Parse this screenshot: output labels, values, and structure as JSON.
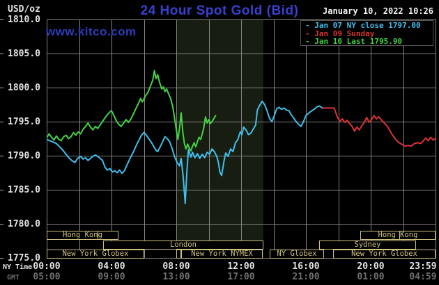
{
  "header": {
    "title": "24 Hour Spot Gold (Bid)",
    "datetime": "January 10, 2022 10:26",
    "watermark": "www.kitco.com",
    "unit_label": "USD/oz"
  },
  "colors": {
    "background": "#000000",
    "grid": "#848484",
    "band": "#171d11",
    "axis_text": "#e4e4e4",
    "gmt_text": "#6e6e6e",
    "session": "#cfc182",
    "title_blue": "#3840cf",
    "watermark_blue": "#2d3db8",
    "date_text": "#f2f2f2",
    "legend_border": "#555555",
    "edge_tick": "#b0b0b0"
  },
  "axes": {
    "y_ticks": [
      "1810.0",
      "1805.0",
      "1800.0",
      "1795.0",
      "1790.0",
      "1785.0",
      "1780.0",
      "1775.0"
    ],
    "x_rows": [
      {
        "label": "NY Time",
        "ticks": [
          "00:00",
          "04:00",
          "08:00",
          "12:00",
          "16:00",
          "20:00",
          "23:59"
        ]
      },
      {
        "label": "GMT",
        "ticks": [
          "05:00",
          "09:00",
          "13:00",
          "17:00",
          "21:00",
          "01:00",
          "04:59"
        ]
      }
    ]
  },
  "sessions": {
    "rows": [
      {
        "boxes": [
          {
            "from": 0,
            "to": 4.43,
            "label": "Hong Kong"
          },
          {
            "from": 19.35,
            "to": 24,
            "label": "Hong Kong"
          }
        ],
        "dividers": [
          3.14,
          21.76
        ]
      },
      {
        "boxes": [
          {
            "from": 3.48,
            "to": 13.38,
            "label": "London"
          },
          {
            "from": 16.82,
            "to": 22.8,
            "label": "Sydney"
          }
        ],
        "dividers": []
      },
      {
        "boxes": [
          {
            "from": 0,
            "to": 6.02,
            "label": "New York Globex"
          },
          {
            "from": 8.0,
            "to": 8.3,
            "label": ""
          },
          {
            "from": 8.3,
            "to": 13.33,
            "label": "New York NYMEX"
          },
          {
            "from": 13.76,
            "to": 17.12,
            "label": "NY Globex"
          },
          {
            "from": 17.68,
            "to": 24,
            "label": "New York Globex"
          }
        ],
        "dividers": []
      }
    ]
  },
  "chart_data": {
    "type": "line",
    "title": "24 Hour Spot Gold (Bid)",
    "ylabel": "USD/oz",
    "x_range_hours": [
      0,
      24
    ],
    "y_range": [
      1775,
      1810
    ],
    "x_grid_step_hours": 2,
    "y_grid_step": 5,
    "y_tick_values": [
      1810,
      1805,
      1800,
      1795,
      1790,
      1785,
      1780,
      1775
    ],
    "x_tick_hours": [
      0,
      4,
      8,
      12,
      16,
      20,
      24
    ],
    "highlight_band_hours": [
      8.0,
      13.37
    ],
    "legend_position": "top-right",
    "series": [
      {
        "name": "Jan 07 NY close 1797.00",
        "color": "#40bfee",
        "points": [
          [
            0,
            1792.4
          ],
          [
            0.2,
            1792.2
          ],
          [
            0.4,
            1792.0
          ],
          [
            0.6,
            1791.8
          ],
          [
            0.8,
            1791.3
          ],
          [
            1.0,
            1790.8
          ],
          [
            1.2,
            1790.2
          ],
          [
            1.4,
            1789.6
          ],
          [
            1.6,
            1789.2
          ],
          [
            1.75,
            1789.0
          ],
          [
            1.9,
            1789.6
          ],
          [
            2.1,
            1789.9
          ],
          [
            2.25,
            1789.5
          ],
          [
            2.4,
            1789.7
          ],
          [
            2.55,
            1789.3
          ],
          [
            2.7,
            1789.6
          ],
          [
            2.85,
            1789.9
          ],
          [
            3.0,
            1790.1
          ],
          [
            3.15,
            1789.9
          ],
          [
            3.3,
            1789.6
          ],
          [
            3.45,
            1789.3
          ],
          [
            3.6,
            1788.3
          ],
          [
            3.75,
            1787.9
          ],
          [
            3.9,
            1788.1
          ],
          [
            4.05,
            1787.6
          ],
          [
            4.2,
            1787.8
          ],
          [
            4.35,
            1787.5
          ],
          [
            4.5,
            1787.9
          ],
          [
            4.65,
            1787.4
          ],
          [
            4.8,
            1787.8
          ],
          [
            4.95,
            1788.6
          ],
          [
            5.1,
            1789.4
          ],
          [
            5.25,
            1790.1
          ],
          [
            5.4,
            1790.8
          ],
          [
            5.55,
            1791.6
          ],
          [
            5.7,
            1792.3
          ],
          [
            5.85,
            1793.0
          ],
          [
            6.0,
            1793.4
          ],
          [
            6.15,
            1793.0
          ],
          [
            6.3,
            1792.5
          ],
          [
            6.45,
            1792.0
          ],
          [
            6.6,
            1791.4
          ],
          [
            6.75,
            1790.8
          ],
          [
            6.85,
            1790.6
          ],
          [
            7.0,
            1791.3
          ],
          [
            7.15,
            1792.0
          ],
          [
            7.3,
            1792.8
          ],
          [
            7.45,
            1792.5
          ],
          [
            7.6,
            1792.0
          ],
          [
            7.75,
            1791.0
          ],
          [
            7.9,
            1789.8
          ],
          [
            8.05,
            1789.0
          ],
          [
            8.2,
            1788.5
          ],
          [
            8.3,
            1789.6
          ],
          [
            8.42,
            1787.0
          ],
          [
            8.55,
            1783.0
          ],
          [
            8.65,
            1787.5
          ],
          [
            8.75,
            1790.9
          ],
          [
            8.9,
            1789.8
          ],
          [
            9.0,
            1790.5
          ],
          [
            9.15,
            1789.7
          ],
          [
            9.3,
            1790.3
          ],
          [
            9.45,
            1789.6
          ],
          [
            9.6,
            1790.2
          ],
          [
            9.75,
            1789.7
          ],
          [
            9.9,
            1790.5
          ],
          [
            10.05,
            1790.2
          ],
          [
            10.2,
            1791.0
          ],
          [
            10.35,
            1790.6
          ],
          [
            10.5,
            1789.9
          ],
          [
            10.6,
            1789.0
          ],
          [
            10.7,
            1787.5
          ],
          [
            10.8,
            1787.1
          ],
          [
            10.95,
            1789.3
          ],
          [
            11.05,
            1790.4
          ],
          [
            11.2,
            1789.9
          ],
          [
            11.35,
            1791.0
          ],
          [
            11.5,
            1790.6
          ],
          [
            11.65,
            1791.9
          ],
          [
            11.8,
            1792.4
          ],
          [
            11.95,
            1793.5
          ],
          [
            12.05,
            1793.1
          ],
          [
            12.15,
            1794.2
          ],
          [
            12.3,
            1793.8
          ],
          [
            12.45,
            1793.1
          ],
          [
            12.6,
            1793.3
          ],
          [
            12.75,
            1793.9
          ],
          [
            12.9,
            1794.5
          ],
          [
            13.0,
            1796.7
          ],
          [
            13.15,
            1797.4
          ],
          [
            13.3,
            1798.0
          ],
          [
            13.45,
            1797.5
          ],
          [
            13.6,
            1796.6
          ],
          [
            13.75,
            1795.5
          ],
          [
            13.9,
            1795.0
          ],
          [
            14.05,
            1795.9
          ],
          [
            14.2,
            1796.9
          ],
          [
            14.35,
            1797.1
          ],
          [
            14.5,
            1796.8
          ],
          [
            14.65,
            1797.0
          ],
          [
            14.8,
            1796.7
          ],
          [
            14.95,
            1796.6
          ],
          [
            15.1,
            1796.0
          ],
          [
            15.25,
            1795.5
          ],
          [
            15.4,
            1795.0
          ],
          [
            15.55,
            1794.6
          ],
          [
            15.7,
            1794.3
          ],
          [
            15.85,
            1795.0
          ],
          [
            16.0,
            1795.9
          ],
          [
            16.15,
            1796.2
          ],
          [
            16.3,
            1796.5
          ],
          [
            16.5,
            1796.8
          ],
          [
            16.7,
            1797.2
          ],
          [
            16.85,
            1797.3
          ],
          [
            17.0,
            1797.0
          ]
        ]
      },
      {
        "name": "Jan 09 Sunday",
        "color": "#dc3232",
        "points": [
          [
            17.05,
            1797.0
          ],
          [
            17.75,
            1797.0
          ],
          [
            17.85,
            1796.3
          ],
          [
            17.95,
            1795.6
          ],
          [
            18.1,
            1795.1
          ],
          [
            18.25,
            1795.4
          ],
          [
            18.4,
            1794.9
          ],
          [
            18.55,
            1795.2
          ],
          [
            18.7,
            1794.7
          ],
          [
            18.85,
            1794.3
          ],
          [
            19.0,
            1793.6
          ],
          [
            19.15,
            1794.2
          ],
          [
            19.3,
            1793.8
          ],
          [
            19.45,
            1794.4
          ],
          [
            19.6,
            1794.9
          ],
          [
            19.75,
            1795.6
          ],
          [
            19.9,
            1794.9
          ],
          [
            20.05,
            1795.3
          ],
          [
            20.2,
            1795.9
          ],
          [
            20.35,
            1795.4
          ],
          [
            20.5,
            1795.7
          ],
          [
            20.65,
            1795.3
          ],
          [
            20.8,
            1794.9
          ],
          [
            21.0,
            1794.4
          ],
          [
            21.15,
            1793.8
          ],
          [
            21.3,
            1793.2
          ],
          [
            21.5,
            1792.5
          ],
          [
            21.7,
            1792.0
          ],
          [
            21.9,
            1791.7
          ],
          [
            22.1,
            1791.4
          ],
          [
            22.3,
            1791.5
          ],
          [
            22.5,
            1791.4
          ],
          [
            22.7,
            1791.8
          ],
          [
            22.9,
            1791.9
          ],
          [
            23.1,
            1791.8
          ],
          [
            23.25,
            1792.2
          ],
          [
            23.4,
            1792.6
          ],
          [
            23.55,
            1792.2
          ],
          [
            23.7,
            1792.7
          ],
          [
            23.85,
            1792.3
          ],
          [
            23.98,
            1792.5
          ]
        ]
      },
      {
        "name": "Jan 10 Last 1795.90",
        "color": "#44d344",
        "points": [
          [
            0,
            1792.6
          ],
          [
            0.15,
            1793.2
          ],
          [
            0.3,
            1792.7
          ],
          [
            0.45,
            1792.3
          ],
          [
            0.6,
            1792.9
          ],
          [
            0.75,
            1792.4
          ],
          [
            0.9,
            1792.2
          ],
          [
            1.05,
            1792.8
          ],
          [
            1.2,
            1793.0
          ],
          [
            1.35,
            1792.5
          ],
          [
            1.5,
            1792.8
          ],
          [
            1.65,
            1793.4
          ],
          [
            1.8,
            1793.0
          ],
          [
            1.95,
            1793.5
          ],
          [
            2.1,
            1793.2
          ],
          [
            2.25,
            1793.9
          ],
          [
            2.4,
            1794.3
          ],
          [
            2.55,
            1794.8
          ],
          [
            2.7,
            1794.2
          ],
          [
            2.85,
            1793.8
          ],
          [
            3.0,
            1794.3
          ],
          [
            3.15,
            1794.0
          ],
          [
            3.3,
            1794.5
          ],
          [
            3.5,
            1795.2
          ],
          [
            3.7,
            1795.9
          ],
          [
            3.85,
            1796.3
          ],
          [
            4.0,
            1796.6
          ],
          [
            4.15,
            1795.9
          ],
          [
            4.3,
            1795.1
          ],
          [
            4.45,
            1794.6
          ],
          [
            4.6,
            1794.3
          ],
          [
            4.75,
            1794.8
          ],
          [
            4.9,
            1795.3
          ],
          [
            5.05,
            1794.9
          ],
          [
            5.2,
            1795.4
          ],
          [
            5.35,
            1796.1
          ],
          [
            5.5,
            1796.9
          ],
          [
            5.65,
            1797.6
          ],
          [
            5.8,
            1798.4
          ],
          [
            5.9,
            1797.9
          ],
          [
            6.0,
            1798.3
          ],
          [
            6.1,
            1798.8
          ],
          [
            6.25,
            1799.3
          ],
          [
            6.4,
            1800.2
          ],
          [
            6.55,
            1801.1
          ],
          [
            6.65,
            1802.5
          ],
          [
            6.75,
            1801.3
          ],
          [
            6.85,
            1801.9
          ],
          [
            6.95,
            1800.9
          ],
          [
            7.1,
            1799.8
          ],
          [
            7.2,
            1800.1
          ],
          [
            7.3,
            1799.4
          ],
          [
            7.4,
            1799.8
          ],
          [
            7.5,
            1799.2
          ],
          [
            7.65,
            1798.4
          ],
          [
            7.8,
            1797.0
          ],
          [
            7.9,
            1795.4
          ],
          [
            8.0,
            1793.8
          ],
          [
            8.1,
            1792.4
          ],
          [
            8.2,
            1794.0
          ],
          [
            8.3,
            1796.3
          ],
          [
            8.4,
            1793.5
          ],
          [
            8.5,
            1791.8
          ],
          [
            8.6,
            1791.0
          ],
          [
            8.7,
            1791.7
          ],
          [
            8.8,
            1791.1
          ],
          [
            8.9,
            1790.7
          ],
          [
            9.0,
            1791.4
          ],
          [
            9.1,
            1791.9
          ],
          [
            9.2,
            1791.3
          ],
          [
            9.3,
            1792.0
          ],
          [
            9.4,
            1792.7
          ],
          [
            9.5,
            1792.4
          ],
          [
            9.6,
            1793.2
          ],
          [
            9.7,
            1794.1
          ],
          [
            9.8,
            1795.7
          ],
          [
            9.9,
            1794.8
          ],
          [
            10.0,
            1795.3
          ],
          [
            10.1,
            1794.7
          ],
          [
            10.2,
            1795.0
          ],
          [
            10.3,
            1795.4
          ],
          [
            10.43,
            1795.9
          ]
        ]
      }
    ]
  }
}
